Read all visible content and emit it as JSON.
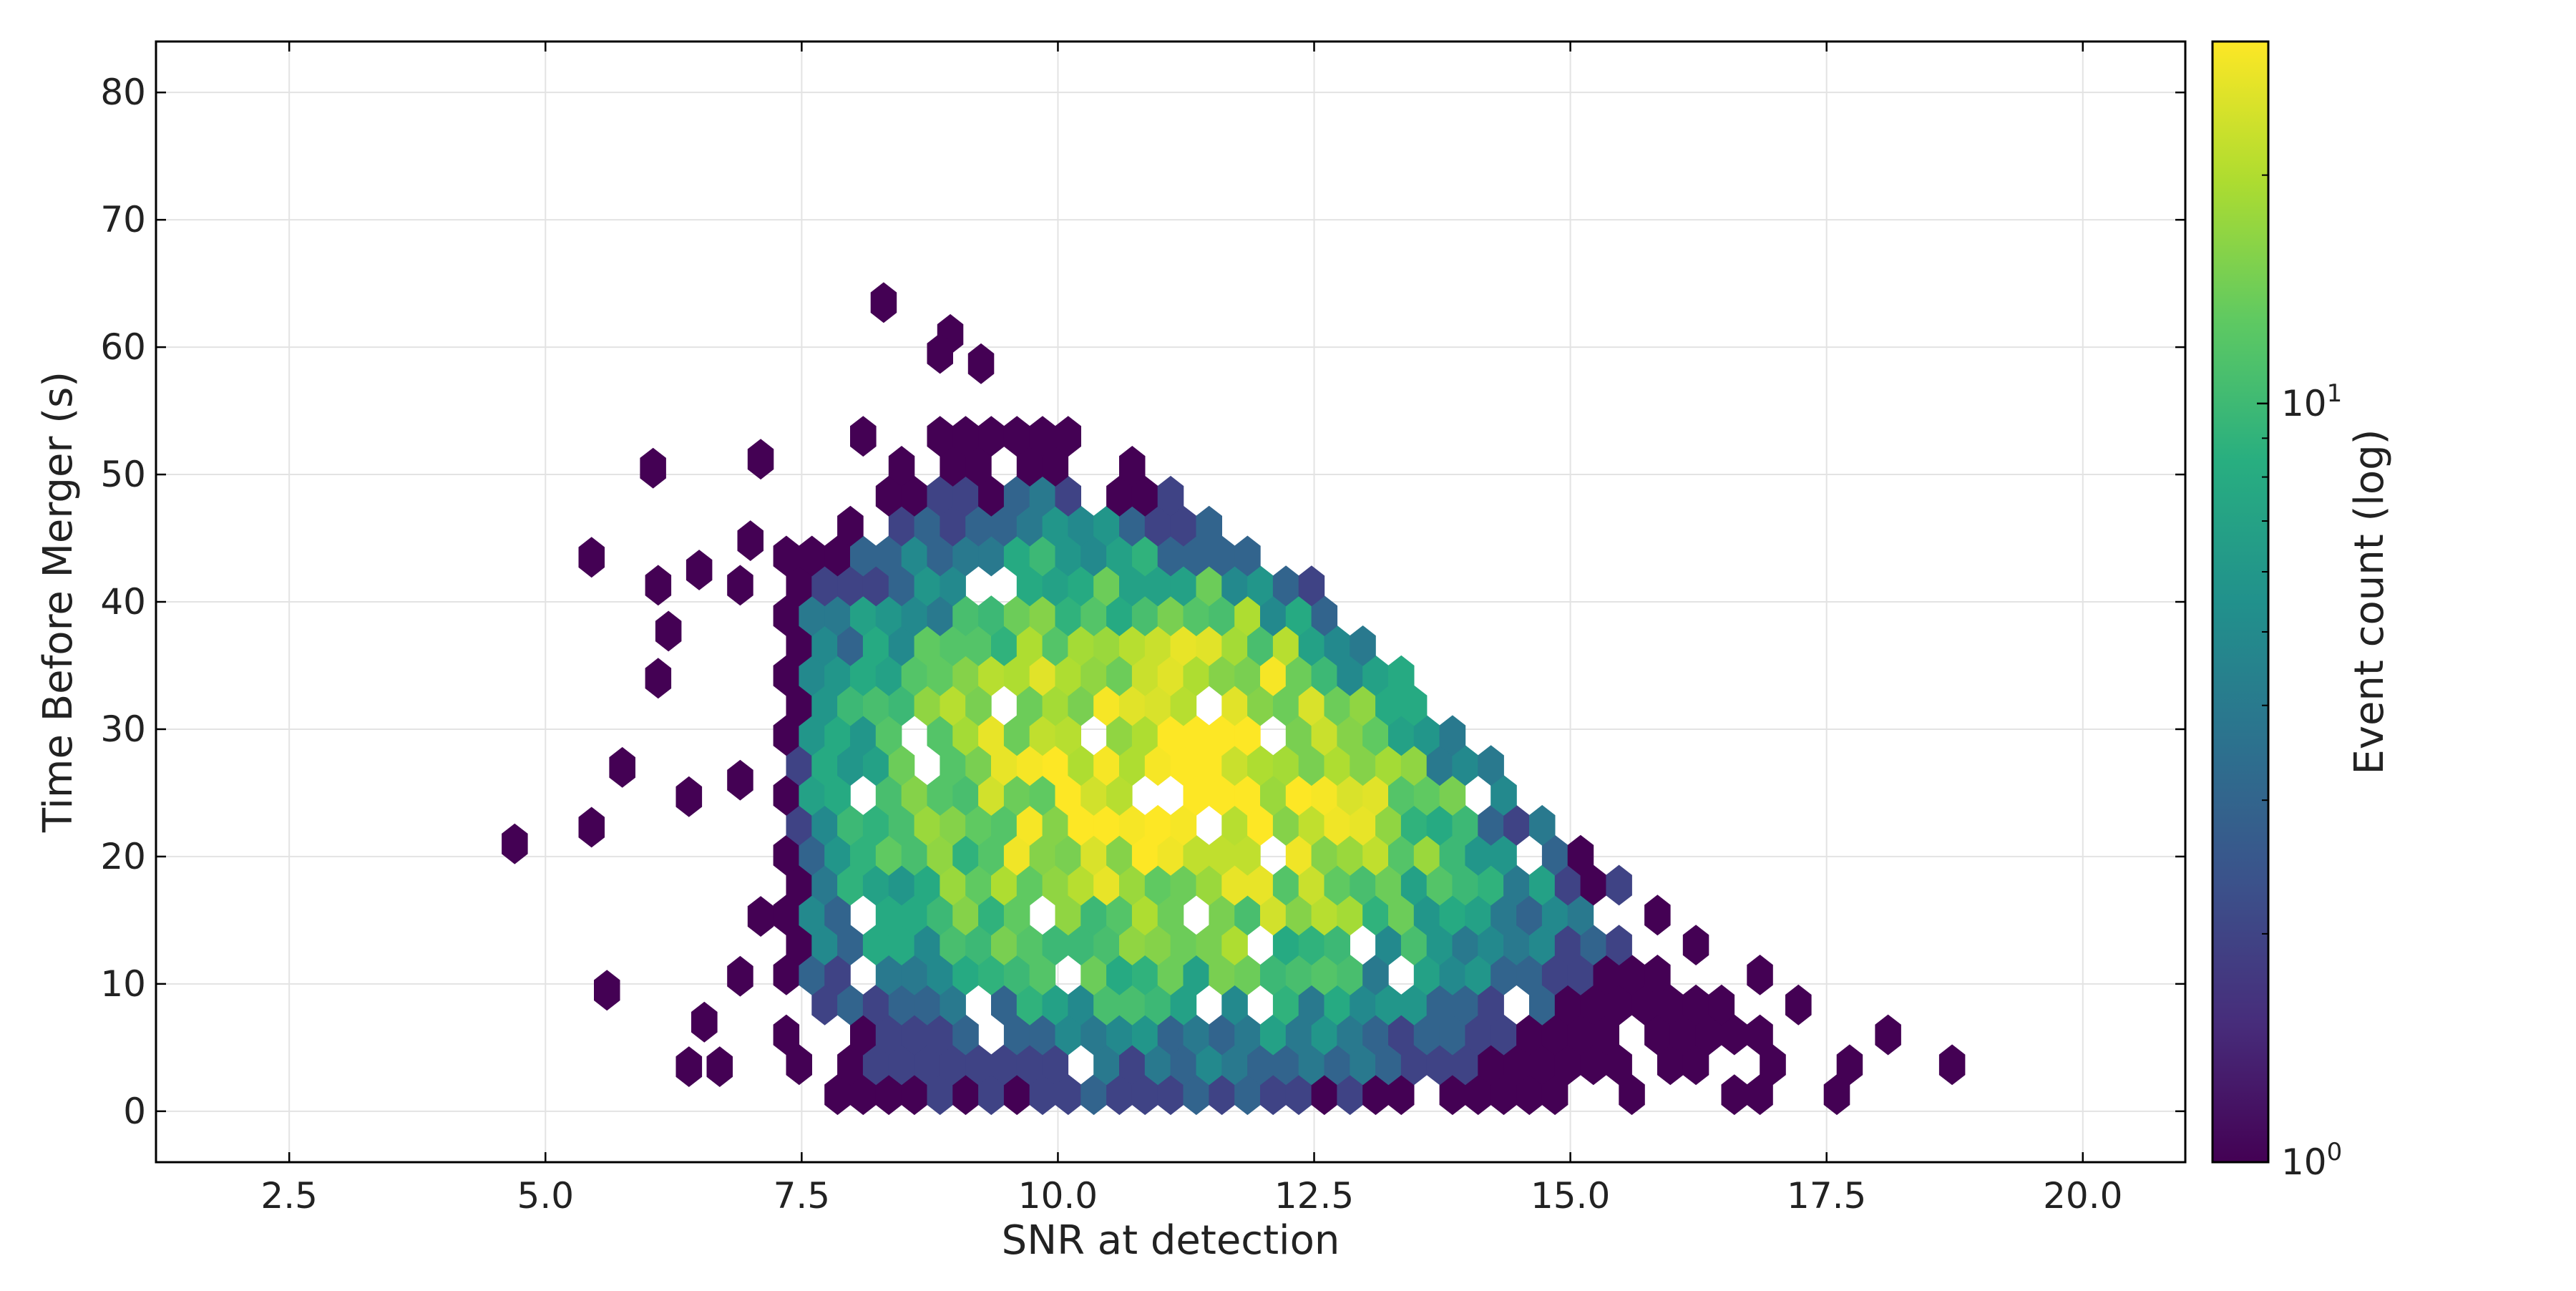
{
  "chart_data": {
    "type": "hexbin",
    "xlabel": "SNR at detection",
    "ylabel": "Time Before Merger (s)",
    "xlim": [
      1.2,
      21.0
    ],
    "ylim": [
      -4.0,
      84.0
    ],
    "xticks": [
      2.5,
      5.0,
      7.5,
      10.0,
      12.5,
      15.0,
      17.5,
      20.0
    ],
    "xtick_labels": [
      "2.5",
      "5.0",
      "7.5",
      "10.0",
      "12.5",
      "15.0",
      "17.5",
      "20.0"
    ],
    "yticks": [
      0,
      10,
      20,
      30,
      40,
      50,
      60,
      70,
      80
    ],
    "ytick_labels": [
      "0",
      "10",
      "20",
      "30",
      "40",
      "50",
      "60",
      "70",
      "80"
    ],
    "grid": true,
    "colormap": "viridis",
    "colorbar": {
      "label": "Event count (log)",
      "scale": "log",
      "range": [
        1,
        30
      ],
      "ticks": [
        1,
        10
      ],
      "tick_bases": [
        "10",
        "10"
      ],
      "tick_exponents": [
        "0",
        "1"
      ]
    },
    "density_model": {
      "peak": [
        11.2,
        26.0
      ],
      "wedge_upper_edge": [
        [
          7.5,
          52
        ],
        [
          10.0,
          53
        ],
        [
          12.5,
          40
        ],
        [
          15.0,
          20
        ],
        [
          17.5,
          6
        ],
        [
          19.5,
          4
        ]
      ],
      "max_count": 30
    },
    "outlier_cells": [
      [
        4.7,
        21.0
      ],
      [
        5.45,
        22.3
      ],
      [
        5.6,
        9.5
      ],
      [
        5.75,
        27.0
      ],
      [
        5.45,
        43.5
      ],
      [
        6.1,
        34.0
      ],
      [
        6.1,
        41.3
      ],
      [
        6.2,
        37.7
      ],
      [
        6.05,
        50.5
      ],
      [
        6.5,
        42.5
      ],
      [
        6.4,
        24.7
      ],
      [
        6.55,
        7.0
      ],
      [
        6.4,
        3.5
      ],
      [
        6.7,
        3.5
      ],
      [
        6.9,
        41.3
      ],
      [
        7.0,
        44.8
      ],
      [
        7.1,
        51.2
      ],
      [
        8.3,
        63.5
      ],
      [
        8.95,
        61.0
      ],
      [
        8.85,
        59.5
      ],
      [
        9.25,
        58.7
      ],
      [
        6.9,
        26.0
      ],
      [
        7.1,
        15.3
      ],
      [
        6.9,
        10.6
      ]
    ]
  }
}
